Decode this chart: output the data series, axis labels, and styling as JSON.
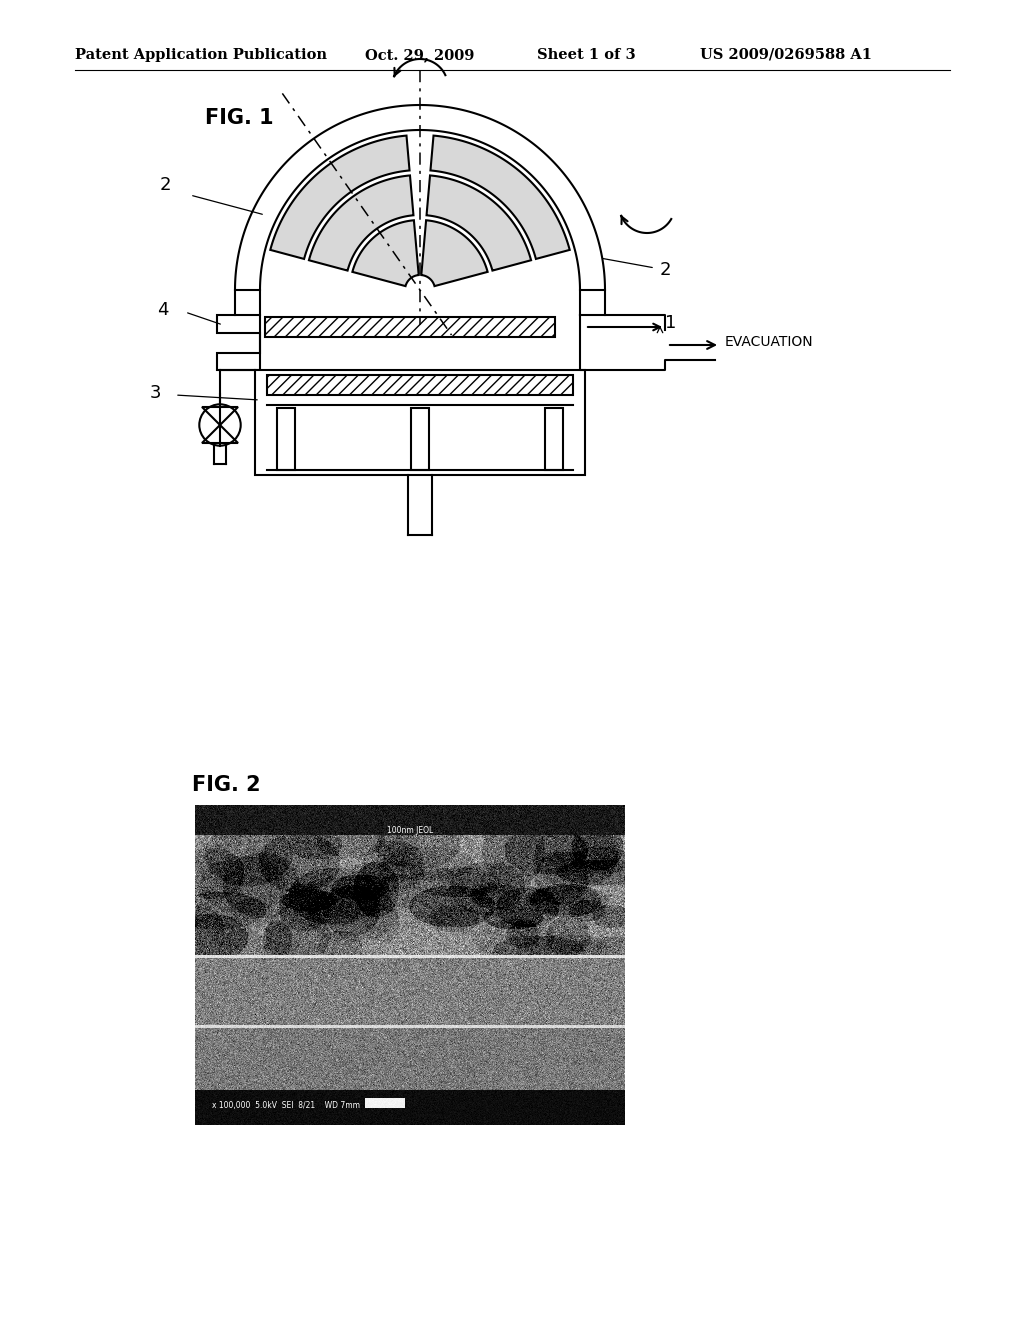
{
  "background_color": "#ffffff",
  "header_text": "Patent Application Publication",
  "header_date": "Oct. 29, 2009",
  "header_sheet": "Sheet 1 of 3",
  "header_patent": "US 2009/0269588 A1",
  "fig1_label": "FIG. 1",
  "fig2_label": "FIG. 2",
  "label_1": "1",
  "label_2a": "2",
  "label_2b": "2",
  "label_3": "3",
  "label_4": "4",
  "evacuation_text": "EVACUATION",
  "text_color": "#000000",
  "line_color": "#000000"
}
